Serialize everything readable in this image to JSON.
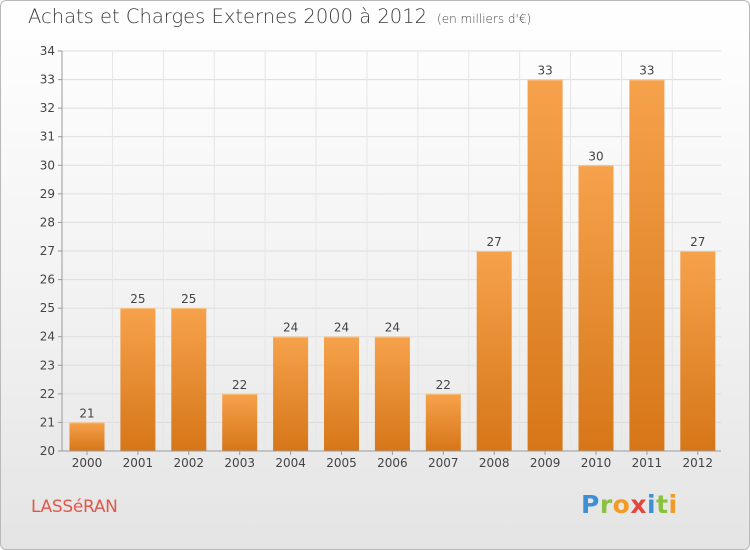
{
  "title": "Achats et Charges Externes 2000 à 2012",
  "unit": "(en milliers d'€)",
  "commune": "LASSéRAN",
  "logo": {
    "p": "P",
    "r": "r",
    "o": "o",
    "x": "x",
    "i1": "i",
    "t": "t",
    "i2": "i"
  },
  "colors": {
    "bar_light": "#f6a24c",
    "bar_dark": "#d67618",
    "commune": "#e2574c"
  },
  "chart_data": {
    "type": "bar",
    "categories": [
      "2000",
      "2001",
      "2002",
      "2003",
      "2004",
      "2005",
      "2006",
      "2007",
      "2008",
      "2009",
      "2010",
      "2011",
      "2012"
    ],
    "values": [
      21,
      25,
      25,
      22,
      24,
      24,
      24,
      22,
      27,
      33,
      30,
      33,
      27
    ],
    "title": "Achats et Charges Externes 2000 à 2012",
    "xlabel": "",
    "ylabel": "",
    "ylim": [
      20,
      34
    ],
    "yticks": [
      20,
      21,
      22,
      23,
      24,
      25,
      26,
      27,
      28,
      29,
      30,
      31,
      32,
      33,
      34
    ],
    "grid": true,
    "data_labels": true
  }
}
